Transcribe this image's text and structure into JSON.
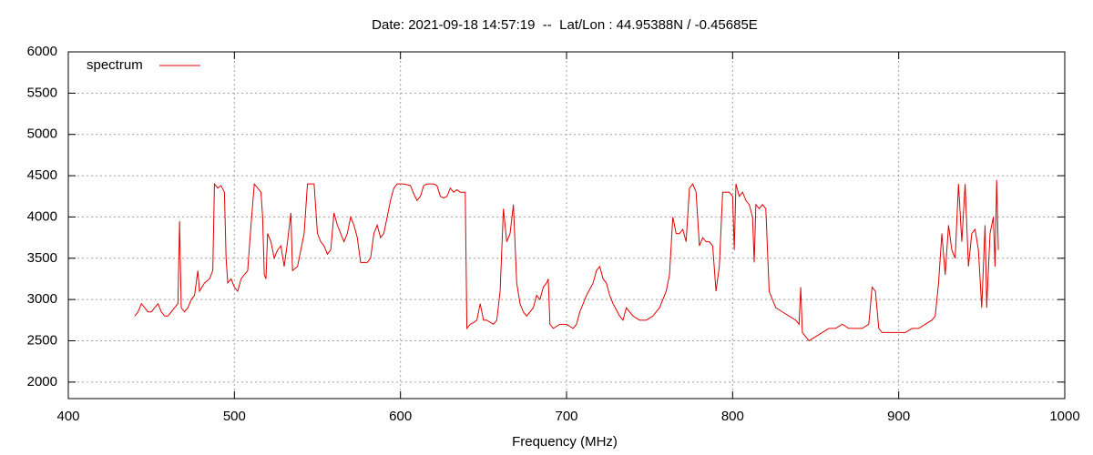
{
  "chart_data": {
    "type": "line",
    "title": "Date: 2021-09-18 14:57:19  --  Lat/Lon : 44.95388N / -0.45685E",
    "x_label": "Frequency (MHz)",
    "xlim": [
      400,
      1000
    ],
    "xticks": [
      400,
      500,
      600,
      700,
      800,
      900,
      1000
    ],
    "ylim": [
      1800,
      6000
    ],
    "yticks": [
      2000,
      2500,
      3000,
      3500,
      4000,
      4500,
      5000,
      5500,
      6000
    ],
    "grid": true,
    "legend": "top-left",
    "x": [
      440,
      442,
      444,
      446,
      448,
      450,
      452,
      454,
      456,
      458,
      460,
      462,
      464,
      466,
      467,
      468,
      470,
      472,
      474,
      476,
      478,
      479,
      482,
      485,
      487,
      488,
      490,
      492,
      494,
      495,
      496,
      498,
      500,
      502,
      504,
      506,
      508,
      510,
      512,
      514,
      516,
      517,
      518,
      519,
      520,
      522,
      524,
      526,
      528,
      530,
      532,
      534,
      535,
      538,
      540,
      542,
      544,
      546,
      548,
      549,
      550,
      552,
      554,
      556,
      558,
      560,
      562,
      564,
      566,
      568,
      570,
      572,
      574,
      576,
      580,
      582,
      584,
      586,
      588,
      590,
      592,
      594,
      596,
      598,
      602,
      606,
      608,
      610,
      612,
      614,
      616,
      620,
      622,
      624,
      626,
      628,
      630,
      632,
      634,
      636,
      639,
      640,
      642,
      644,
      646,
      648,
      650,
      652,
      656,
      658,
      660,
      662,
      664,
      666,
      668,
      670,
      672,
      674,
      676,
      678,
      680,
      682,
      684,
      686,
      688,
      689,
      690,
      692,
      696,
      700,
      704,
      706,
      708,
      712,
      716,
      718,
      720,
      722,
      724,
      726,
      728,
      732,
      734,
      736,
      738,
      740,
      744,
      748,
      752,
      756,
      760,
      762,
      764,
      766,
      768,
      770,
      772,
      774,
      776,
      778,
      780,
      782,
      784,
      786,
      788,
      790,
      792,
      794,
      796,
      798,
      800,
      801,
      802,
      804,
      806,
      808,
      810,
      812,
      813,
      814,
      816,
      818,
      820,
      822,
      826,
      830,
      834,
      838,
      840,
      841,
      842,
      846,
      850,
      854,
      858,
      862,
      866,
      870,
      874,
      878,
      882,
      884,
      886,
      888,
      890,
      894,
      898,
      900,
      904,
      908,
      912,
      916,
      920,
      922,
      924,
      926,
      928,
      930,
      932,
      934,
      936,
      938,
      940,
      942,
      944,
      946,
      948,
      950,
      952,
      953,
      955,
      957,
      958,
      959,
      960
    ],
    "series": [
      {
        "name": "spectrum",
        "color": "#e00000",
        "values": [
          2800,
          2850,
          2950,
          2900,
          2850,
          2850,
          2900,
          2950,
          2850,
          2800,
          2800,
          2850,
          2900,
          2950,
          3950,
          2900,
          2850,
          2900,
          3000,
          3050,
          3350,
          3100,
          3200,
          3250,
          3350,
          4400,
          4350,
          4380,
          4300,
          3500,
          3200,
          3250,
          3150,
          3100,
          3250,
          3300,
          3350,
          3900,
          4400,
          4350,
          4300,
          4000,
          3300,
          3250,
          3800,
          3700,
          3500,
          3600,
          3650,
          3400,
          3700,
          4050,
          3350,
          3400,
          3600,
          3800,
          4400,
          4400,
          4400,
          4100,
          3800,
          3700,
          3650,
          3550,
          3600,
          4050,
          3900,
          3800,
          3700,
          3800,
          4000,
          3900,
          3750,
          3450,
          3450,
          3500,
          3800,
          3900,
          3750,
          3800,
          4000,
          4200,
          4350,
          4400,
          4400,
          4380,
          4280,
          4200,
          4250,
          4380,
          4400,
          4400,
          4380,
          4250,
          4230,
          4250,
          4350,
          4300,
          4330,
          4300,
          4300,
          2650,
          2700,
          2720,
          2750,
          2950,
          2750,
          2750,
          2700,
          2750,
          3100,
          4100,
          3700,
          3800,
          4150,
          3200,
          2950,
          2850,
          2800,
          2850,
          2900,
          3050,
          3000,
          3150,
          3200,
          3250,
          2700,
          2650,
          2700,
          2700,
          2650,
          2700,
          2850,
          3050,
          3200,
          3350,
          3400,
          3250,
          3200,
          3050,
          2950,
          2800,
          2750,
          2900,
          2850,
          2800,
          2750,
          2750,
          2800,
          2900,
          3100,
          3300,
          4000,
          3800,
          3800,
          3850,
          3700,
          4350,
          4400,
          4300,
          3650,
          3750,
          3700,
          3700,
          3650,
          3100,
          3400,
          4300,
          4300,
          4300,
          4250,
          3600,
          4400,
          4250,
          4300,
          4200,
          4150,
          4000,
          3450,
          4150,
          4100,
          4150,
          4100,
          3100,
          2900,
          2850,
          2800,
          2750,
          2700,
          3150,
          2600,
          2500,
          2550,
          2600,
          2650,
          2650,
          2700,
          2650,
          2650,
          2650,
          2700,
          3150,
          3100,
          2650,
          2600,
          2600,
          2600,
          2600,
          2600,
          2650,
          2650,
          2700,
          2750,
          2800,
          3200,
          3800,
          3300,
          3900,
          3600,
          3500,
          4400,
          3700,
          4400,
          3400,
          3800,
          3850,
          3600,
          2900,
          3900,
          2900,
          3800,
          4000,
          3400,
          4450,
          3600
        ]
      }
    ]
  }
}
